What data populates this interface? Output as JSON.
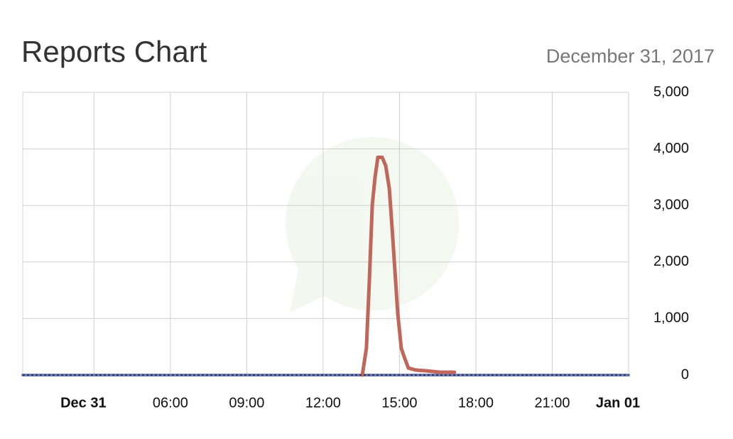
{
  "chart_data": {
    "type": "line",
    "title": "Reports Chart",
    "subtitle": "December 31, 2017",
    "xlim": [
      0.2,
      24
    ],
    "xticks": [
      {
        "value": 3,
        "label": "Dec 31"
      },
      {
        "value": 6,
        "label": "06:00"
      },
      {
        "value": 9,
        "label": "09:00"
      },
      {
        "value": 12,
        "label": "12:00"
      },
      {
        "value": 15,
        "label": "15:00"
      },
      {
        "value": 18,
        "label": "18:00"
      },
      {
        "value": 21,
        "label": "21:00"
      },
      {
        "value": 24,
        "label": "Jan 01"
      }
    ],
    "ylim": [
      0,
      5000
    ],
    "yticks": [
      0,
      {
        "value": 1000,
        "label": "1,000"
      },
      {
        "value": 2000,
        "label": "2,000"
      },
      {
        "value": 3000,
        "label": "3,000"
      },
      {
        "value": 4000,
        "label": "4,000"
      },
      {
        "value": 5000,
        "label": "5,000"
      }
    ],
    "grid": true,
    "series": [
      {
        "color": "#6f7fbf",
        "x": [
          0.2,
          24
        ],
        "values": [
          0,
          0
        ]
      },
      {
        "color": "#c0665a",
        "x": [
          13.54,
          13.7,
          13.81,
          13.93,
          14.04,
          14.15,
          14.32,
          14.46,
          14.6,
          14.71,
          14.82,
          14.93,
          15.07,
          15.21,
          15.35,
          15.62,
          16.04,
          16.6,
          17.16
        ],
        "values": [
          0,
          475,
          1600,
          3000,
          3500,
          3850,
          3850,
          3700,
          3300,
          2600,
          1850,
          1100,
          475,
          290,
          125,
          90,
          75,
          50,
          50
        ]
      }
    ]
  }
}
